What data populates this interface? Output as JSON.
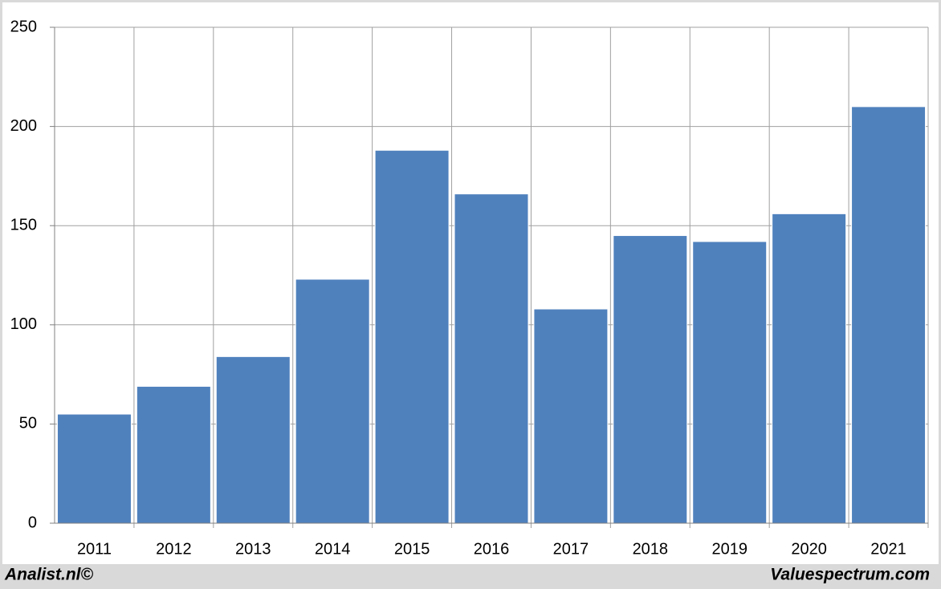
{
  "chart_data": {
    "type": "bar",
    "categories": [
      "2011",
      "2012",
      "2013",
      "2014",
      "2015",
      "2016",
      "2017",
      "2018",
      "2019",
      "2020",
      "2021"
    ],
    "values": [
      55,
      69,
      84,
      123,
      188,
      166,
      108,
      145,
      142,
      156,
      210
    ],
    "color": "#4f81bd",
    "ylim": [
      0,
      250
    ],
    "yticks": [
      0,
      50,
      100,
      150,
      200,
      250
    ],
    "grid": true,
    "annotations": [
      "Analist.nl©",
      "Valuespectrum.com"
    ]
  }
}
